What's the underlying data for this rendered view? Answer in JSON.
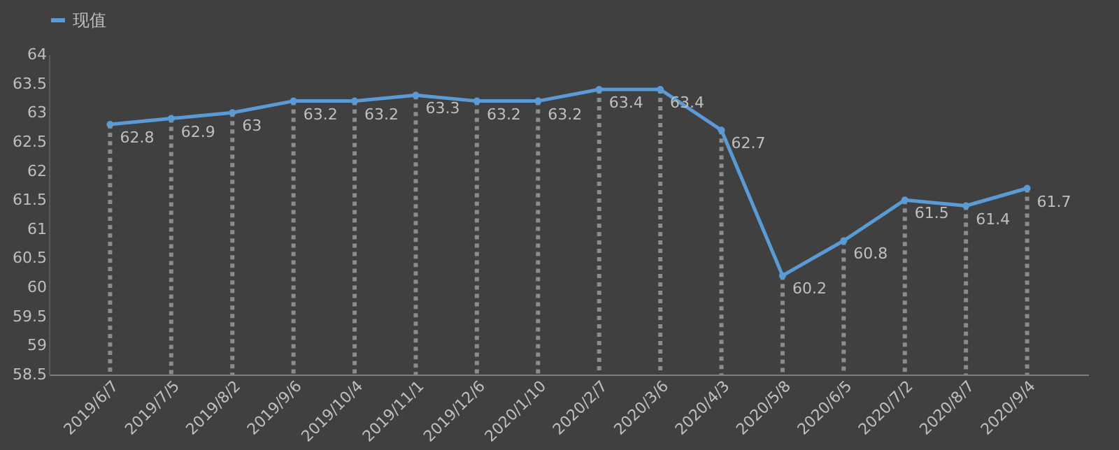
{
  "chart_data": {
    "type": "line",
    "categories": [
      "2019/6/7",
      "2019/7/5",
      "2019/8/2",
      "2019/9/6",
      "2019/10/4",
      "2019/11/1",
      "2019/12/6",
      "2020/1/10",
      "2020/2/7",
      "2020/3/6",
      "2020/4/3",
      "2020/5/8",
      "2020/6/5",
      "2020/7/2",
      "2020/8/7",
      "2020/9/4"
    ],
    "series": [
      {
        "name": "现值",
        "color": "#5b9bd5",
        "values": [
          62.8,
          62.9,
          63,
          63.2,
          63.2,
          63.3,
          63.2,
          63.2,
          63.4,
          63.4,
          62.7,
          60.2,
          60.8,
          61.5,
          61.4,
          61.7
        ]
      }
    ],
    "ylim": [
      58.5,
      64
    ],
    "yticks": [
      58.5,
      59,
      59.5,
      60,
      60.5,
      61,
      61.5,
      62,
      62.5,
      63,
      63.5,
      64
    ],
    "data_labels": true,
    "legend": "top",
    "marker": "circle",
    "line_style": "solid",
    "grid": false
  }
}
